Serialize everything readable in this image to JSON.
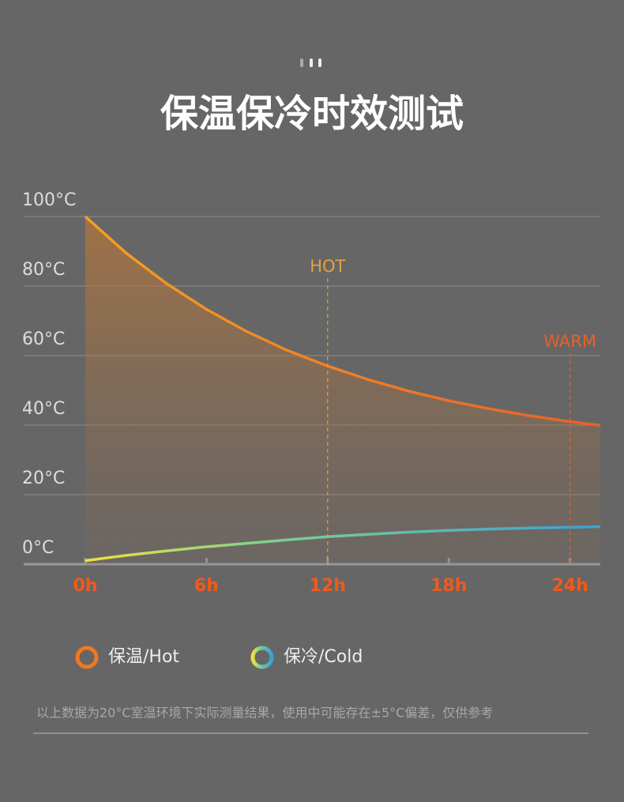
{
  "chart_data": {
    "type": "line",
    "title": "保温保冷时效测试",
    "x": [
      0,
      2,
      4,
      6,
      8,
      10,
      12,
      14,
      16,
      18,
      20,
      22,
      24,
      25.5
    ],
    "series": [
      {
        "name": "保温/Hot",
        "color": "#f07820",
        "values": [
          100,
          89.6,
          80.8,
          73.3,
          66.9,
          61.5,
          57,
          53.1,
          49.8,
          47,
          44.7,
          42.7,
          41,
          39.9
        ]
      },
      {
        "name": "保冷/Cold",
        "color": "#3aa0d8",
        "values": [
          1,
          2.5,
          3.8,
          5,
          6,
          7,
          7.9,
          8.6,
          9.2,
          9.7,
          10.1,
          10.4,
          10.6,
          10.8
        ]
      }
    ],
    "xlim": [
      0,
      25.5
    ],
    "xticks": [
      {
        "value": 0,
        "label": "0h"
      },
      {
        "value": 6,
        "label": "6h"
      },
      {
        "value": 12,
        "label": "12h"
      },
      {
        "value": 18,
        "label": "18h"
      },
      {
        "value": 24,
        "label": "24h"
      }
    ],
    "ylim": [
      0,
      100
    ],
    "yticks": [
      {
        "value": 0,
        "label": "0°C"
      },
      {
        "value": 20,
        "label": "20°C"
      },
      {
        "value": 40,
        "label": "40°C"
      },
      {
        "value": 60,
        "label": "60°C"
      },
      {
        "value": 80,
        "label": "80°C"
      },
      {
        "value": 100,
        "label": "100°C"
      }
    ],
    "grid": true,
    "annotations": [
      {
        "text": "HOT",
        "x": 12,
        "color": "#e8a040"
      },
      {
        "text": "WARM",
        "x": 24,
        "color": "#e8602a"
      }
    ],
    "note": "以上数据为20°C室温环境下实际测量结果，使用中可能存在±5°C偏差，仅供参考"
  }
}
